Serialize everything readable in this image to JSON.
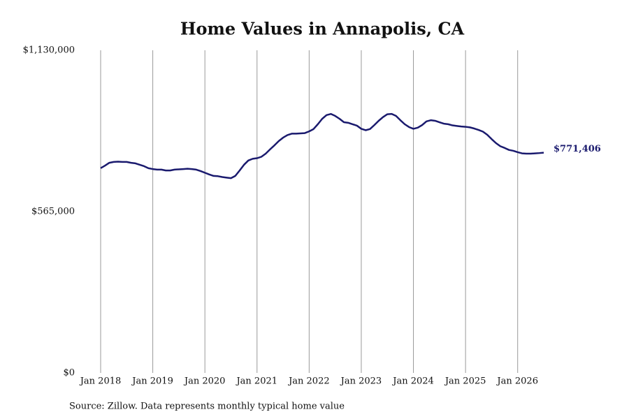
{
  "chart_data": {
    "type": "line",
    "title": "Home Values in Annapolis, CA",
    "source": "Source: Zillow. Data represents monthly typical home value",
    "color": "#1a1a6e",
    "x": [
      "2018-01",
      "2018-02",
      "2018-03",
      "2018-04",
      "2018-05",
      "2018-06",
      "2018-07",
      "2018-08",
      "2018-09",
      "2018-10",
      "2018-11",
      "2018-12",
      "2019-01",
      "2019-02",
      "2019-03",
      "2019-04",
      "2019-05",
      "2019-06",
      "2019-07",
      "2019-08",
      "2019-09",
      "2019-10",
      "2019-11",
      "2019-12",
      "2020-01",
      "2020-02",
      "2020-03",
      "2020-04",
      "2020-05",
      "2020-06",
      "2020-07",
      "2020-08",
      "2020-09",
      "2020-10",
      "2020-11",
      "2020-12",
      "2021-01",
      "2021-02",
      "2021-03",
      "2021-04",
      "2021-05",
      "2021-06",
      "2021-07",
      "2021-08",
      "2021-09",
      "2021-10",
      "2021-11",
      "2021-12",
      "2022-01",
      "2022-02",
      "2022-03",
      "2022-04",
      "2022-05",
      "2022-06",
      "2022-07",
      "2022-08",
      "2022-09",
      "2022-10",
      "2022-11",
      "2022-12",
      "2023-01",
      "2023-02",
      "2023-03",
      "2023-04",
      "2023-05",
      "2023-06",
      "2023-07",
      "2023-08",
      "2023-09",
      "2023-10",
      "2023-11",
      "2023-12",
      "2024-01",
      "2024-02",
      "2024-03",
      "2024-04",
      "2024-05",
      "2024-06",
      "2024-07",
      "2024-08",
      "2024-09",
      "2024-10",
      "2024-11",
      "2024-12",
      "2025-01",
      "2025-02",
      "2025-03",
      "2025-04",
      "2025-05",
      "2025-06",
      "2025-07",
      "2025-08",
      "2025-09",
      "2025-10",
      "2025-11",
      "2025-12",
      "2026-01",
      "2026-02",
      "2026-03",
      "2026-04",
      "2026-05",
      "2026-06",
      "2026-07"
    ],
    "values": [
      717000,
      726000,
      736000,
      739000,
      740000,
      739000,
      739000,
      736000,
      734000,
      729000,
      724000,
      717000,
      714000,
      712000,
      712000,
      709000,
      709000,
      712000,
      713000,
      714000,
      715000,
      714000,
      712000,
      707000,
      701000,
      695000,
      690000,
      689000,
      686000,
      684000,
      682000,
      690000,
      709000,
      729000,
      744000,
      750000,
      752000,
      757000,
      768000,
      783000,
      797000,
      812000,
      824000,
      833000,
      838000,
      838000,
      839000,
      840000,
      846000,
      854000,
      871000,
      890000,
      903000,
      907000,
      900000,
      890000,
      878000,
      876000,
      871000,
      866000,
      855000,
      850000,
      854000,
      868000,
      883000,
      896000,
      906000,
      907000,
      900000,
      885000,
      871000,
      861000,
      855000,
      859000,
      868000,
      881000,
      885000,
      883000,
      878000,
      873000,
      871000,
      867000,
      865000,
      863000,
      862000,
      860000,
      856000,
      851000,
      845000,
      834000,
      819000,
      805000,
      794000,
      788000,
      781000,
      778000,
      773000,
      769000,
      768000,
      768000,
      769000,
      770000,
      771406
    ],
    "value_labels": [
      null,
      null,
      null,
      null,
      null,
      null,
      null,
      null,
      null,
      null,
      null,
      null,
      null,
      null,
      null,
      null,
      null,
      null,
      null,
      null,
      null,
      null,
      null,
      null,
      null,
      null,
      null,
      null,
      null,
      null,
      null,
      null,
      null,
      null,
      null,
      null,
      null,
      null,
      null,
      null,
      null,
      null,
      null,
      null,
      null,
      null,
      null,
      null,
      null,
      null,
      null,
      null,
      null,
      null,
      null,
      null,
      null,
      null,
      null,
      null,
      null,
      null,
      null,
      null,
      null,
      null,
      null,
      null,
      null,
      null,
      null,
      null,
      null,
      null,
      null,
      null,
      null,
      null,
      null,
      null,
      null,
      null,
      null,
      null,
      null,
      null,
      null,
      null,
      null,
      null,
      null,
      null,
      null,
      null,
      null,
      null,
      null,
      null,
      null,
      null,
      null,
      null,
      "$771,406"
    ],
    "xlim": [
      "2018-01",
      "2026-07"
    ],
    "xticks": [
      {
        "value": "2018-01",
        "label": "Jan 2018"
      },
      {
        "value": "2019-01",
        "label": "Jan 2019"
      },
      {
        "value": "2020-01",
        "label": "Jan 2020"
      },
      {
        "value": "2021-01",
        "label": "Jan 2021"
      },
      {
        "value": "2022-01",
        "label": "Jan 2022"
      },
      {
        "value": "2023-01",
        "label": "Jan 2023"
      },
      {
        "value": "2024-01",
        "label": "Jan 2024"
      },
      {
        "value": "2025-01",
        "label": "Jan 2025"
      },
      {
        "value": "2026-01",
        "label": "Jan 2026"
      }
    ],
    "ylim": [
      0,
      1130000
    ],
    "yticks": [
      {
        "value": 0,
        "label": "$0"
      },
      {
        "value": 565000,
        "label": "$565,000"
      },
      {
        "value": 1130000,
        "label": "$1,130,000"
      }
    ],
    "grid": "x"
  }
}
